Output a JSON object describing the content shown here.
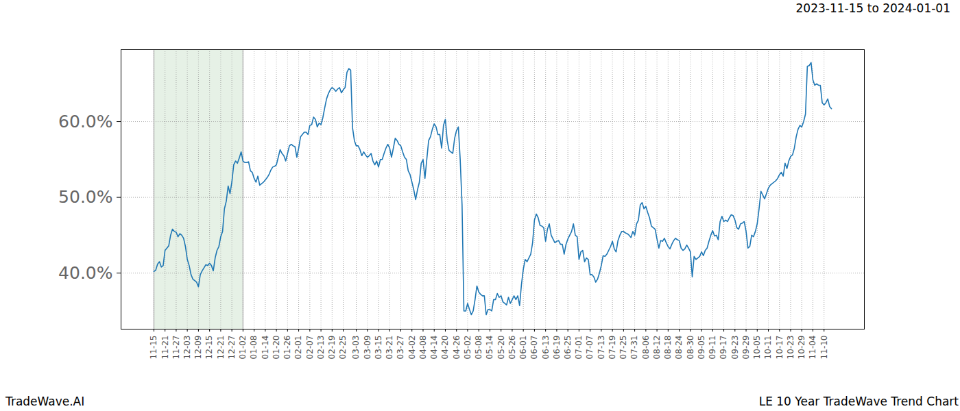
{
  "chart_data": {
    "type": "line",
    "title": "2023-11-15 to 2024-01-01",
    "source": "TradeWave.AI",
    "caption": "LE 10 Year TradeWave Trend Chart",
    "color": "#1f77b4",
    "grid": true,
    "shaded": [
      "11-15",
      "01-02"
    ],
    "ylim": [
      32.6,
      69.5
    ],
    "yticks": [
      {
        "value": 40,
        "label": "40.0%"
      },
      {
        "value": 50,
        "label": "50.0%"
      },
      {
        "value": 60,
        "label": "60.0%"
      }
    ],
    "categories": [
      "11-15",
      null,
      null,
      null,
      null,
      null,
      "11-21",
      null,
      null,
      null,
      null,
      null,
      "11-27",
      null,
      null,
      null,
      null,
      null,
      "12-03",
      null,
      null,
      null,
      null,
      null,
      "12-09",
      null,
      null,
      null,
      null,
      null,
      "12-15",
      null,
      null,
      null,
      null,
      null,
      "12-21",
      null,
      null,
      null,
      null,
      null,
      "12-27",
      null,
      null,
      null,
      null,
      null,
      "01-02",
      null,
      null,
      null,
      null,
      null,
      "01-08",
      null,
      null,
      null,
      null,
      null,
      "01-14",
      null,
      null,
      null,
      null,
      null,
      "01-20",
      null,
      null,
      null,
      null,
      null,
      "01-26",
      null,
      null,
      null,
      null,
      null,
      "02-01",
      null,
      null,
      null,
      null,
      null,
      "02-07",
      null,
      null,
      null,
      null,
      null,
      "02-13",
      null,
      null,
      null,
      null,
      null,
      "02-19",
      null,
      null,
      null,
      null,
      null,
      "02-25",
      null,
      null,
      null,
      null,
      null,
      null,
      "03-03",
      null,
      null,
      null,
      null,
      null,
      "03-09",
      null,
      null,
      null,
      null,
      null,
      "03-15",
      null,
      null,
      null,
      null,
      null,
      "03-21",
      null,
      null,
      null,
      null,
      null,
      "03-27",
      null,
      null,
      null,
      null,
      null,
      "04-02",
      null,
      null,
      null,
      null,
      null,
      "04-08",
      null,
      null,
      null,
      null,
      null,
      "04-14",
      null,
      null,
      null,
      null,
      null,
      "04-20",
      null,
      null,
      null,
      null,
      null,
      "04-26",
      null,
      null,
      null,
      null,
      null,
      "05-02",
      null,
      null,
      null,
      null,
      null,
      "05-08",
      null,
      null,
      null,
      null,
      null,
      "05-14",
      null,
      null,
      null,
      null,
      null,
      "05-20",
      null,
      null,
      null,
      null,
      null,
      "05-26",
      null,
      null,
      null,
      null,
      null,
      "06-01",
      null,
      null,
      null,
      null,
      null,
      "06-07",
      null,
      null,
      null,
      null,
      null,
      "06-13",
      null,
      null,
      null,
      null,
      null,
      "06-19",
      null,
      null,
      null,
      null,
      null,
      "06-25",
      null,
      null,
      null,
      null,
      null,
      "07-01",
      null,
      null,
      null,
      null,
      null,
      "07-07",
      null,
      null,
      null,
      null,
      null,
      "07-13",
      null,
      null,
      null,
      null,
      null,
      "07-19",
      null,
      null,
      null,
      null,
      null,
      "07-25",
      null,
      null,
      null,
      null,
      null,
      "07-31",
      null,
      null,
      null,
      null,
      null,
      "08-06",
      null,
      null,
      null,
      null,
      null,
      "08-12",
      null,
      null,
      null,
      null,
      null,
      "08-18",
      null,
      null,
      null,
      null,
      null,
      "08-24",
      null,
      null,
      null,
      null,
      null,
      "08-30",
      null,
      null,
      null,
      null,
      null,
      "09-05",
      null,
      null,
      null,
      null,
      null,
      "09-11",
      null,
      null,
      null,
      null,
      null,
      "09-17",
      null,
      null,
      null,
      null,
      null,
      "09-23",
      null,
      null,
      null,
      null,
      null,
      "09-29",
      null,
      null,
      null,
      null,
      null,
      "10-05",
      null,
      null,
      null,
      null,
      null,
      "10-11",
      null,
      null,
      null,
      null,
      null,
      "10-17",
      null,
      null,
      null,
      null,
      null,
      "10-23",
      null,
      null,
      null,
      null,
      null,
      "10-29",
      null,
      null,
      null,
      null,
      null,
      "11-04",
      null,
      null,
      null,
      null,
      null,
      "11-10",
      null,
      null,
      null,
      null
    ],
    "values": [
      40.2,
      40.4,
      41.2,
      41.5,
      40.8,
      41.0,
      43.0,
      43.3,
      43.6,
      45.0,
      45.8,
      45.5,
      45.4,
      44.8,
      45.2,
      45.0,
      44.6,
      43.5,
      41.8,
      41.0,
      39.8,
      39.2,
      39.0,
      38.8,
      38.2,
      39.8,
      40.3,
      40.7,
      41.1,
      41.0,
      41.3,
      41.0,
      40.3,
      42.0,
      43.0,
      43.5,
      44.8,
      45.5,
      48.5,
      49.5,
      51.5,
      50.5,
      52.0,
      54.3,
      54.8,
      54.5,
      55.2,
      56.0,
      54.8,
      54.6,
      54.6,
      54.7,
      53.5,
      53.3,
      52.5,
      52.0,
      52.8,
      51.6,
      51.8,
      52.0,
      52.3,
      52.6,
      53.0,
      53.6,
      54.0,
      54.1,
      54.3,
      55.3,
      56.3,
      55.8,
      55.5,
      54.8,
      55.8,
      56.8,
      57.0,
      56.8,
      56.7,
      55.3,
      56.5,
      58.0,
      58.3,
      58.6,
      58.6,
      58.3,
      59.5,
      59.6,
      60.6,
      60.3,
      59.3,
      59.8,
      59.6,
      60.5,
      61.8,
      63.0,
      63.7,
      64.2,
      64.5,
      64.3,
      64.0,
      64.3,
      64.5,
      63.8,
      64.2,
      64.5,
      66.5,
      67.0,
      66.8,
      59.2,
      57.5,
      56.8,
      56.8,
      56.3,
      55.5,
      56.0,
      55.6,
      55.3,
      55.5,
      55.8,
      54.8,
      54.3,
      54.8,
      54.0,
      55.0,
      55.0,
      55.8,
      56.5,
      57.0,
      56.5,
      55.3,
      56.5,
      57.8,
      57.5,
      57.0,
      56.8,
      56.0,
      55.3,
      55.0,
      53.5,
      53.0,
      52.0,
      51.0,
      49.7,
      51.0,
      52.0,
      54.5,
      55.0,
      52.5,
      55.0,
      57.5,
      58.0,
      59.0,
      59.7,
      59.3,
      58.3,
      58.3,
      56.5,
      59.5,
      60.3,
      57.5,
      56.2,
      56.0,
      55.8,
      57.8,
      58.8,
      59.3,
      55.0,
      49.0,
      35.0,
      35.0,
      36.0,
      35.2,
      34.5,
      35.0,
      36.5,
      38.3,
      37.5,
      37.2,
      37.0,
      37.0,
      34.5,
      35.2,
      35.2,
      35.0,
      36.5,
      36.5,
      37.3,
      36.8,
      37.0,
      36.2,
      36.0,
      35.8,
      36.8,
      36.0,
      36.5,
      37.0,
      36.5,
      37.0,
      35.7,
      38.5,
      40.5,
      41.8,
      41.5,
      42.0,
      42.5,
      44.0,
      47.0,
      47.8,
      47.3,
      46.3,
      46.2,
      46.0,
      44.2,
      45.8,
      46.5,
      45.0,
      44.5,
      44.0,
      44.2,
      44.3,
      43.8,
      43.8,
      42.5,
      43.8,
      44.5,
      45.0,
      45.5,
      46.5,
      45.0,
      44.8,
      41.8,
      42.8,
      43.0,
      41.5,
      42.0,
      41.8,
      39.8,
      39.8,
      39.5,
      38.8,
      39.2,
      40.0,
      41.0,
      42.3,
      42.2,
      42.5,
      43.0,
      43.5,
      44.2,
      43.2,
      42.8,
      44.3,
      45.0,
      45.5,
      45.5,
      45.3,
      45.2,
      45.0,
      44.7,
      45.5,
      45.0,
      46.5,
      47.0,
      49.0,
      49.3,
      48.5,
      48.8,
      48.0,
      47.3,
      46.2,
      46.0,
      45.8,
      44.5,
      43.3,
      44.3,
      44.2,
      44.6,
      44.0,
      43.5,
      43.2,
      43.8,
      44.3,
      44.6,
      44.4,
      44.3,
      43.3,
      43.0,
      43.2,
      43.7,
      43.3,
      42.8,
      39.5,
      42.2,
      41.8,
      42.0,
      42.2,
      42.8,
      42.3,
      43.0,
      43.3,
      44.2,
      45.0,
      45.6,
      44.9,
      45.0,
      44.4,
      46.8,
      47.5,
      46.8,
      47.0,
      46.8,
      47.3,
      47.7,
      47.6,
      47.0,
      46.0,
      45.8,
      46.5,
      46.6,
      46.8,
      45.5,
      43.3,
      43.5,
      45.0,
      44.8,
      45.5,
      46.5,
      48.5,
      50.8,
      50.3,
      49.8,
      50.5,
      51.2,
      51.6,
      51.8,
      52.0,
      52.2,
      52.5,
      53.0,
      53.3,
      52.8,
      54.5,
      53.8,
      54.8,
      55.4,
      55.6,
      56.5,
      58.0,
      59.0,
      59.5,
      59.3,
      60.0,
      61.0,
      67.3,
      67.4,
      67.8,
      65.5,
      64.8,
      65.0,
      64.8,
      64.8,
      62.5,
      62.2,
      62.5,
      63.0,
      62.0,
      61.7
    ]
  }
}
